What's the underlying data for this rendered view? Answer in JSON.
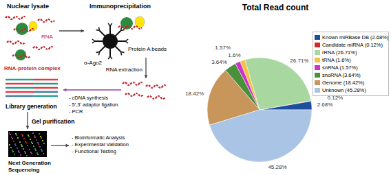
{
  "diagram": {
    "panels": {
      "lysate": "Nuclear lysate",
      "ip": "Immunoprecipitation"
    },
    "labels": {
      "rna": "RNA",
      "complex": "RNA-protein complex",
      "antibody": "α-Ago2",
      "beads": "Protein A beads",
      "extraction": "RNA extraction",
      "library": "Library generation",
      "library_steps": [
        "- cDNA synthesis",
        "- 5',3' adaptor ligation",
        "- PCR"
      ],
      "gel": "Gel purification",
      "ngs": "Next Generation Sequencing",
      "analysis_steps": [
        "- Bioinformatic Analysis",
        "- Experimental Validation",
        "- Functional Testing"
      ]
    }
  },
  "chart_data": {
    "type": "pie",
    "title": "Total Read count",
    "categories": [
      "Known miRBase DB (2.68%)",
      "Candidate miRNA (0.12%)",
      "rRNA (26.71%)",
      "tRNA (1.6%)",
      "snRNA (1.57%)",
      "snoRNA (3.64%)",
      "Genome (18.42%)",
      "Unknown (45.28%)"
    ],
    "values": [
      2.68,
      0.12,
      26.71,
      1.6,
      1.57,
      3.64,
      18.42,
      45.28
    ],
    "value_labels": [
      "2.68%",
      "0.12%",
      "26.71%",
      "1.6%",
      "1.57%",
      "3.64%",
      "18.42%",
      "45.28%"
    ],
    "colors": [
      "#1f4e9c",
      "#d62728",
      "#a8d8a0",
      "#f5c242",
      "#cc33cc",
      "#4a8f3a",
      "#c8955a",
      "#a9c4e4"
    ],
    "data_labels": true,
    "legend": "right"
  }
}
